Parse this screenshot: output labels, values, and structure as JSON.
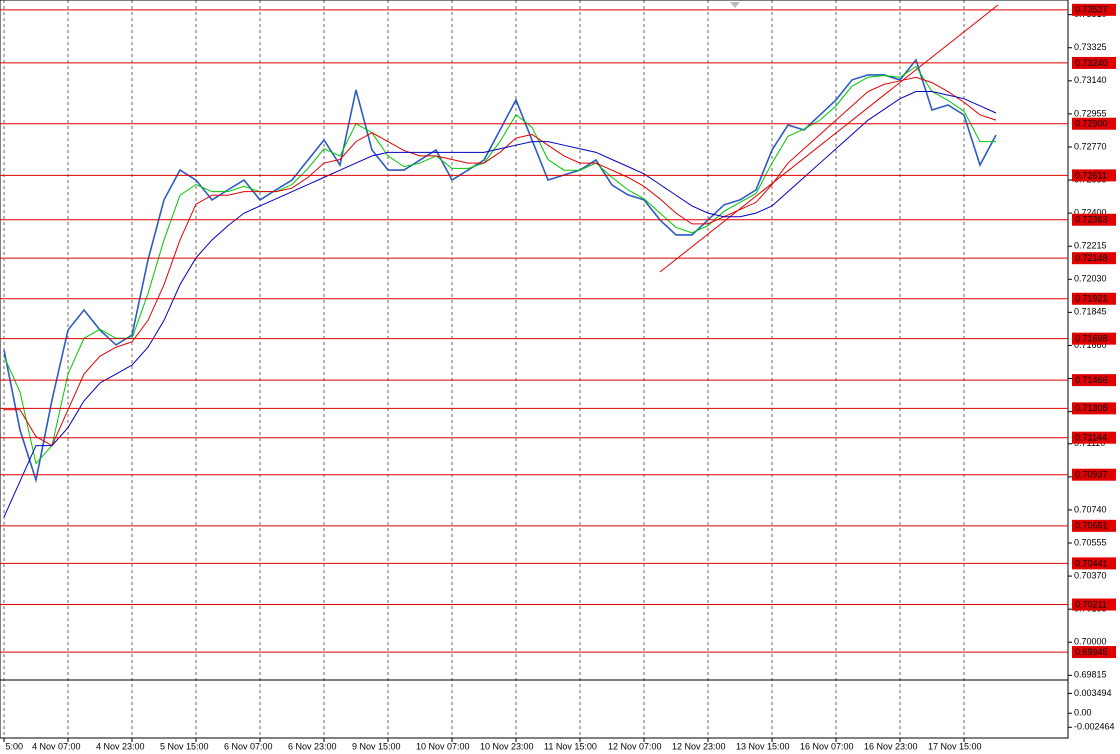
{
  "chart_data": [
    {
      "type": "line",
      "grid": "x",
      "ylim": [
        0.698,
        0.73592
      ],
      "yticks": [
        {
          "value": 0.7351,
          "label": "0.73510"
        },
        0.73325,
        {
          "value": 0.7314,
          "label": "0.73140"
        },
        0.72955,
        {
          "value": 0.7277,
          "label": "0.72770"
        },
        0.72585,
        {
          "value": 0.724,
          "label": "0.72400"
        },
        0.72215,
        {
          "value": 0.7203,
          "label": "0.72030"
        },
        0.71845,
        {
          "value": 0.7166,
          "label": "0.71660"
        },
        0.71475,
        {
          "value": 0.7129,
          "label": "0.71290"
        },
        {
          "value": 0.7111,
          "label": "0.71110"
        },
        0.70925,
        {
          "value": 0.7074,
          "label": "0.70740"
        },
        0.70555,
        {
          "value": 0.7037,
          "label": "0.70370"
        },
        0.70185,
        {
          "value": 0.7,
          "label": "0.70000"
        },
        0.69815
      ],
      "levels": [
        0.73537,
        {
          "value": 0.7324,
          "label": "0.73240"
        },
        {
          "value": 0.729,
          "label": "0.72900"
        },
        0.72611,
        0.72363,
        0.72148,
        0.71921,
        0.71698,
        0.71466,
        0.71308,
        0.71144,
        0.70937,
        0.70651,
        0.70441,
        0.70211,
        0.69945
      ],
      "level_color": "#e00000",
      "categories": [
        "5:00",
        null,
        null,
        null,
        "4 Nov 07:00",
        null,
        null,
        null,
        "4 Nov 23:00",
        null,
        null,
        null,
        "5 Nov 15:00",
        null,
        null,
        null,
        "6 Nov 07:00",
        null,
        null,
        null,
        "6 Nov 23:00",
        null,
        null,
        null,
        "9 Nov 15:00",
        null,
        null,
        null,
        "10 Nov 07:00",
        null,
        null,
        null,
        "10 Nov 23:00",
        null,
        null,
        null,
        "11 Nov 15:00",
        null,
        null,
        null,
        "12 Nov 07:00",
        null,
        null,
        null,
        "12 Nov 23:00",
        null,
        null,
        null,
        "13 Nov 15:00",
        null,
        null,
        null,
        "16 Nov 07:00",
        null,
        null,
        null,
        "16 Nov 23:00",
        null,
        null,
        null,
        "17 Nov 15:00",
        null,
        null
      ],
      "series": [
        {
          "color": "#2d5bc4",
          "values": [
            0.71635,
            0.71187,
            0.70907,
            0.71355,
            0.71746,
            0.71858,
            0.71746,
            0.71663,
            0.71718,
            0.72138,
            0.72474,
            0.72641,
            0.72585,
            0.72474,
            0.7253,
            0.72585,
            0.72474,
            0.7253,
            0.72585,
            0.72697,
            0.72809,
            0.72669,
            0.73089,
            0.72753,
            0.72641,
            0.72641,
            0.72697,
            0.72753,
            0.72585,
            0.72641,
            0.72697,
            0.72865,
            0.73033,
            0.72809,
            0.72585,
            0.72613,
            0.72641,
            0.72697,
            0.72557,
            0.72502,
            0.72474,
            0.72362,
            0.72278,
            0.72278,
            0.72362,
            0.72446,
            0.72474,
            0.7253,
            0.72753,
            0.72893,
            0.72865,
            0.72949,
            0.73033,
            0.73145,
            0.73173,
            0.73173,
            0.73145,
            0.73257,
            0.72977,
            0.73005,
            0.72949,
            0.72669,
            0.72837
          ]
        },
        {
          "color": "#00c800",
          "values": [
            0.716,
            0.714,
            0.71,
            0.711,
            0.715,
            0.717,
            0.7175,
            0.717,
            0.717,
            0.7195,
            0.7225,
            0.725,
            0.7256,
            0.7252,
            0.7252,
            0.7255,
            0.7252,
            0.7252,
            0.7256,
            0.7265,
            0.7276,
            0.7272,
            0.729,
            0.7285,
            0.7272,
            0.7266,
            0.7268,
            0.7272,
            0.7265,
            0.7265,
            0.7268,
            0.728,
            0.7295,
            0.7288,
            0.727,
            0.7264,
            0.7264,
            0.7268,
            0.726,
            0.7253,
            0.7248,
            0.724,
            0.7232,
            0.7229,
            0.7233,
            0.7241,
            0.7246,
            0.7251,
            0.7268,
            0.7283,
            0.7287,
            0.7292,
            0.73,
            0.7311,
            0.7316,
            0.7317,
            0.7316,
            0.7322,
            0.7308,
            0.7303,
            0.7297,
            0.728,
            0.728
          ]
        },
        {
          "color": "#e00000",
          "values": [
            0.713,
            0.713,
            0.7115,
            0.711,
            0.713,
            0.715,
            0.716,
            0.7165,
            0.7168,
            0.718,
            0.72,
            0.7225,
            0.7245,
            0.725,
            0.725,
            0.7252,
            0.7252,
            0.7252,
            0.7254,
            0.726,
            0.7268,
            0.727,
            0.728,
            0.7285,
            0.728,
            0.7275,
            0.7272,
            0.7272,
            0.727,
            0.7268,
            0.7268,
            0.7274,
            0.7282,
            0.7284,
            0.7278,
            0.7272,
            0.7268,
            0.7268,
            0.7264,
            0.726,
            0.7255,
            0.7248,
            0.724,
            0.7234,
            0.7234,
            0.7238,
            0.7242,
            0.7246,
            0.7256,
            0.7268,
            0.7276,
            0.7284,
            0.7292,
            0.73,
            0.7308,
            0.7312,
            0.7314,
            0.7316,
            0.7313,
            0.7308,
            0.7302,
            0.7295,
            0.7292
          ]
        },
        {
          "color": "#0000c0",
          "values": [
            0.707,
            0.709,
            0.711,
            0.711,
            0.712,
            0.7135,
            0.7145,
            0.715,
            0.7155,
            0.7165,
            0.718,
            0.72,
            0.7215,
            0.7225,
            0.7233,
            0.724,
            0.7244,
            0.7248,
            0.7252,
            0.7256,
            0.726,
            0.7264,
            0.7268,
            0.7272,
            0.7274,
            0.7274,
            0.7274,
            0.7274,
            0.7274,
            0.7274,
            0.7274,
            0.7276,
            0.7278,
            0.728,
            0.728,
            0.7278,
            0.7276,
            0.7274,
            0.727,
            0.7266,
            0.7262,
            0.7256,
            0.725,
            0.7244,
            0.724,
            0.7238,
            0.7238,
            0.724,
            0.7244,
            0.7252,
            0.726,
            0.7268,
            0.7276,
            0.7284,
            0.7292,
            0.7298,
            0.7304,
            0.7308,
            0.7308,
            0.7306,
            0.7304,
            0.73,
            0.7296
          ]
        }
      ]
    },
    {
      "type": "oscillator",
      "ylim": [
        -0.004,
        0.0055
      ],
      "yticks": [
        0.003494,
        {
          "value": 0,
          "label": "0.00"
        },
        -0.002464
      ]
    }
  ]
}
